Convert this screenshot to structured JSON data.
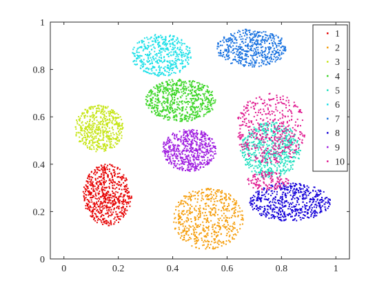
{
  "chart_data": {
    "type": "scatter",
    "title": "",
    "xlabel": "",
    "ylabel": "",
    "xlim": [
      -0.05,
      1.05
    ],
    "ylim": [
      0,
      1
    ],
    "xticks": [
      0,
      0.2,
      0.4,
      0.6,
      0.8,
      1
    ],
    "yticks": [
      0,
      0.2,
      0.4,
      0.6,
      0.8,
      1
    ],
    "xtick_labels": [
      "0",
      "0.2",
      "0.4",
      "0.6",
      "0.8",
      "1"
    ],
    "ytick_labels": [
      "0",
      "0.2",
      "0.4",
      "0.6",
      "0.8",
      "1"
    ],
    "grid": false,
    "legend_position": "top-right",
    "series": [
      {
        "name": "1",
        "color": "#e60000",
        "clusters": [
          {
            "center": [
              0.16,
              0.27
            ],
            "radius": [
              0.09,
              0.13
            ],
            "count": 600
          }
        ]
      },
      {
        "name": "2",
        "color": "#f59d0a",
        "clusters": [
          {
            "center": [
              0.53,
              0.17
            ],
            "radius": [
              0.13,
              0.13
            ],
            "count": 550
          }
        ]
      },
      {
        "name": "3",
        "color": "#c7e61a",
        "clusters": [
          {
            "center": [
              0.13,
              0.55
            ],
            "radius": [
              0.09,
              0.1
            ],
            "count": 500
          }
        ]
      },
      {
        "name": "4",
        "color": "#3fd62a",
        "clusters": [
          {
            "center": [
              0.43,
              0.67
            ],
            "radius": [
              0.13,
              0.09
            ],
            "count": 650
          }
        ]
      },
      {
        "name": "5",
        "color": "#22e0c0",
        "clusters": [
          {
            "center": [
              0.76,
              0.46
            ],
            "radius": [
              0.11,
              0.12
            ],
            "count": 600
          }
        ]
      },
      {
        "name": "6",
        "color": "#1fe0e8",
        "clusters": [
          {
            "center": [
              0.36,
              0.86
            ],
            "radius": [
              0.11,
              0.09
            ],
            "count": 450
          }
        ]
      },
      {
        "name": "7",
        "color": "#1a73e0",
        "clusters": [
          {
            "center": [
              0.69,
              0.89
            ],
            "radius": [
              0.13,
              0.08
            ],
            "count": 500
          }
        ]
      },
      {
        "name": "8",
        "color": "#1400d8",
        "clusters": [
          {
            "center": [
              0.83,
              0.24
            ],
            "radius": [
              0.15,
              0.08
            ],
            "count": 550
          }
        ]
      },
      {
        "name": "9",
        "color": "#a01fe0",
        "clusters": [
          {
            "center": [
              0.46,
              0.46
            ],
            "radius": [
              0.1,
              0.09
            ],
            "count": 550
          }
        ]
      },
      {
        "name": "10",
        "color": "#e01a90",
        "clusters": [
          {
            "center": [
              0.76,
              0.55
            ],
            "radius": [
              0.13,
              0.15
            ],
            "count": 450
          },
          {
            "center": [
              0.75,
              0.33
            ],
            "radius": [
              0.08,
              0.04
            ],
            "count": 120
          }
        ]
      }
    ]
  }
}
